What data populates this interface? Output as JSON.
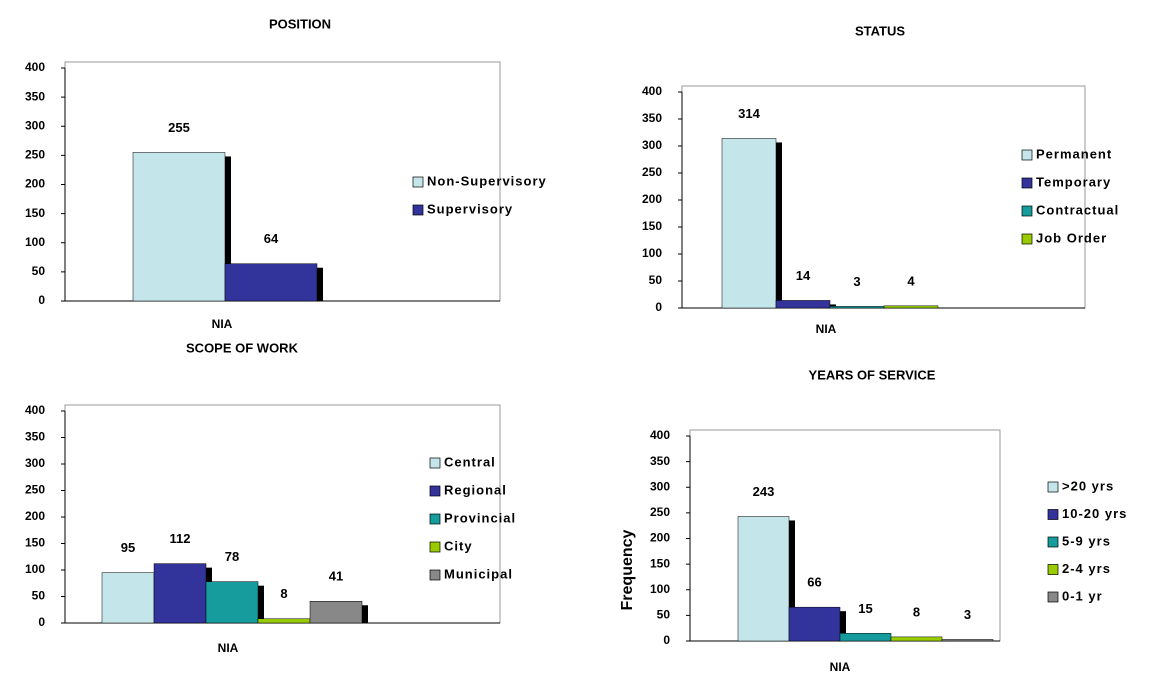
{
  "chart_data": [
    {
      "type": "bar",
      "title": "POSITION",
      "categories": [
        "NIA"
      ],
      "ylim": [
        0,
        400
      ],
      "yticks": [
        0,
        50,
        100,
        150,
        200,
        250,
        300,
        350,
        400
      ],
      "series": [
        {
          "name": "Non-Supervisory",
          "color": "#c4e6ea",
          "values": [
            255
          ]
        },
        {
          "name": "Supervisory",
          "color": "#33339c",
          "values": [
            64
          ]
        }
      ]
    },
    {
      "type": "bar",
      "title": "STATUS",
      "categories": [
        "NIA"
      ],
      "ylim": [
        0,
        400
      ],
      "yticks": [
        0,
        50,
        100,
        150,
        200,
        250,
        300,
        350,
        400
      ],
      "series": [
        {
          "name": "Permanent",
          "color": "#c4e6ea",
          "values": [
            314
          ]
        },
        {
          "name": "Temporary",
          "color": "#33339c",
          "values": [
            14
          ]
        },
        {
          "name": "Contractual",
          "color": "#169c9c",
          "values": [
            3
          ]
        },
        {
          "name": "Job Order",
          "color": "#99cc00",
          "values": [
            4
          ]
        }
      ]
    },
    {
      "type": "bar",
      "title": "SCOPE OF WORK",
      "categories": [
        "NIA"
      ],
      "ylim": [
        0,
        400
      ],
      "yticks": [
        0,
        50,
        100,
        150,
        200,
        250,
        300,
        350,
        400
      ],
      "series": [
        {
          "name": "Central",
          "color": "#c4e6ea",
          "values": [
            95
          ]
        },
        {
          "name": "Regional",
          "color": "#33339c",
          "values": [
            112
          ]
        },
        {
          "name": "Provincial",
          "color": "#169c9c",
          "values": [
            78
          ]
        },
        {
          "name": "City",
          "color": "#99cc00",
          "values": [
            8
          ]
        },
        {
          "name": "Municipal",
          "color": "#888888",
          "values": [
            41
          ]
        }
      ]
    },
    {
      "type": "bar",
      "title": "YEARS OF SERVICE",
      "y_label": "Frequency",
      "categories": [
        "NIA"
      ],
      "ylim": [
        0,
        400
      ],
      "yticks": [
        0,
        50,
        100,
        150,
        200,
        250,
        300,
        350,
        400
      ],
      "series": [
        {
          "name": ">20 yrs",
          "color": "#c4e6ea",
          "values": [
            243
          ]
        },
        {
          "name": "10-20 yrs",
          "color": "#33339c",
          "values": [
            66
          ]
        },
        {
          "name": "5-9 yrs",
          "color": "#169c9c",
          "values": [
            15
          ]
        },
        {
          "name": "2-4 yrs",
          "color": "#99cc00",
          "values": [
            8
          ]
        },
        {
          "name": "0-1 yr",
          "color": "#888888",
          "values": [
            3
          ]
        }
      ]
    }
  ]
}
